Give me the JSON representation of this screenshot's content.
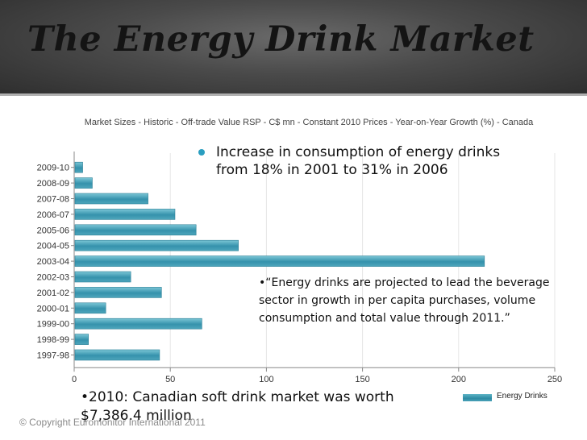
{
  "slide": {
    "title": "The Energy Drink Market",
    "bullet_1": "Increase in consumption of energy drinks from 18% in 2001 to 31% in 2006",
    "quote": "•“Energy drinks are projected to lead the beverage sector in growth in per capita purchases, volume consumption and total value through 2011.”",
    "note": "•2010: Canadian soft drink market was worth $7,386.4 million",
    "copyright": "© Copyright Euromonitor International 2011"
  },
  "colors": {
    "bar": "#3a9ab4",
    "bar_light": "#6ebfd0",
    "accent_bullet": "#2a9ec0"
  },
  "chart_data": {
    "type": "bar",
    "orientation": "horizontal",
    "title": "Market Sizes - Historic - Off-trade Value RSP - C$ mn - Constant 2010 Prices - Year-on-Year Growth (%) - Canada",
    "categories": [
      "2009-10",
      "2008-09",
      "2007-08",
      "2006-07",
      "2005-06",
      "2004-05",
      "2003-04",
      "2002-03",
      "2001-02",
      "2000-01",
      "1999-00",
      "1998-99",
      "1997-98"
    ],
    "series": [
      {
        "name": "Energy Drinks",
        "values": [
          4,
          9,
          38,
          52,
          63,
          85,
          213,
          29,
          45,
          16,
          66,
          7,
          44
        ]
      }
    ],
    "xlim": [
      0,
      250
    ],
    "xticks": [
      "0",
      "50",
      "100",
      "150",
      "200",
      "250"
    ],
    "xlabel": "",
    "ylabel": "",
    "legend": "bottom-right"
  }
}
